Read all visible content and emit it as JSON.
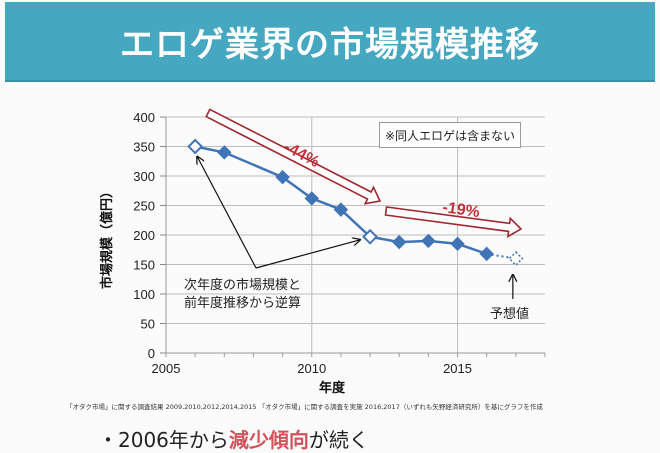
{
  "slide": {
    "title": "エロゲ業界の市場規模推移",
    "source_note": "「オタク市場」に関する調査結果 2009,2010,2012,2014,2015 「オタク市場」に関する調査を実施 2016,2017（いずれも矢野経済研究所）を基にグラフを作成",
    "bullet_prefix": "・2006年から",
    "bullet_highlight": "減少傾向",
    "bullet_suffix": "が続く"
  },
  "chart_data": {
    "type": "line",
    "title": "エロゲ業界の市場規模推移",
    "xlabel": "年度",
    "ylabel": "市場規模（億円）",
    "xlim": [
      2005,
      2018
    ],
    "ylim": [
      0,
      400
    ],
    "x_ticks": [
      2005,
      2010,
      2015
    ],
    "y_ticks": [
      0,
      50,
      100,
      150,
      200,
      250,
      300,
      350,
      400
    ],
    "grid": true,
    "series": [
      {
        "name": "市場規模",
        "color": "#3f74b6",
        "points": [
          {
            "x": 2006,
            "y": 350,
            "kind": "estimated"
          },
          {
            "x": 2007,
            "y": 340,
            "kind": "actual"
          },
          {
            "x": 2009,
            "y": 298,
            "kind": "actual"
          },
          {
            "x": 2010,
            "y": 262,
            "kind": "actual"
          },
          {
            "x": 2011,
            "y": 243,
            "kind": "actual"
          },
          {
            "x": 2012,
            "y": 197,
            "kind": "estimated"
          },
          {
            "x": 2013,
            "y": 188,
            "kind": "actual"
          },
          {
            "x": 2014,
            "y": 190,
            "kind": "actual"
          },
          {
            "x": 2015,
            "y": 185,
            "kind": "actual"
          },
          {
            "x": 2016,
            "y": 168,
            "kind": "actual"
          },
          {
            "x": 2017,
            "y": 160,
            "kind": "forecast"
          }
        ]
      }
    ],
    "annotations": {
      "trend1_label": "-44%",
      "trend2_label": "-19%",
      "exclusion_note": "※同人エロゲは含まない",
      "estimate_note_line1": "次年度の市場規模と",
      "estimate_note_line2": "前年度推移から逆算",
      "forecast_note": "予想値"
    },
    "colors": {
      "line": "#3f74b6",
      "trend_arrow": "#a3252e",
      "trend_text": "#c0313a"
    }
  }
}
